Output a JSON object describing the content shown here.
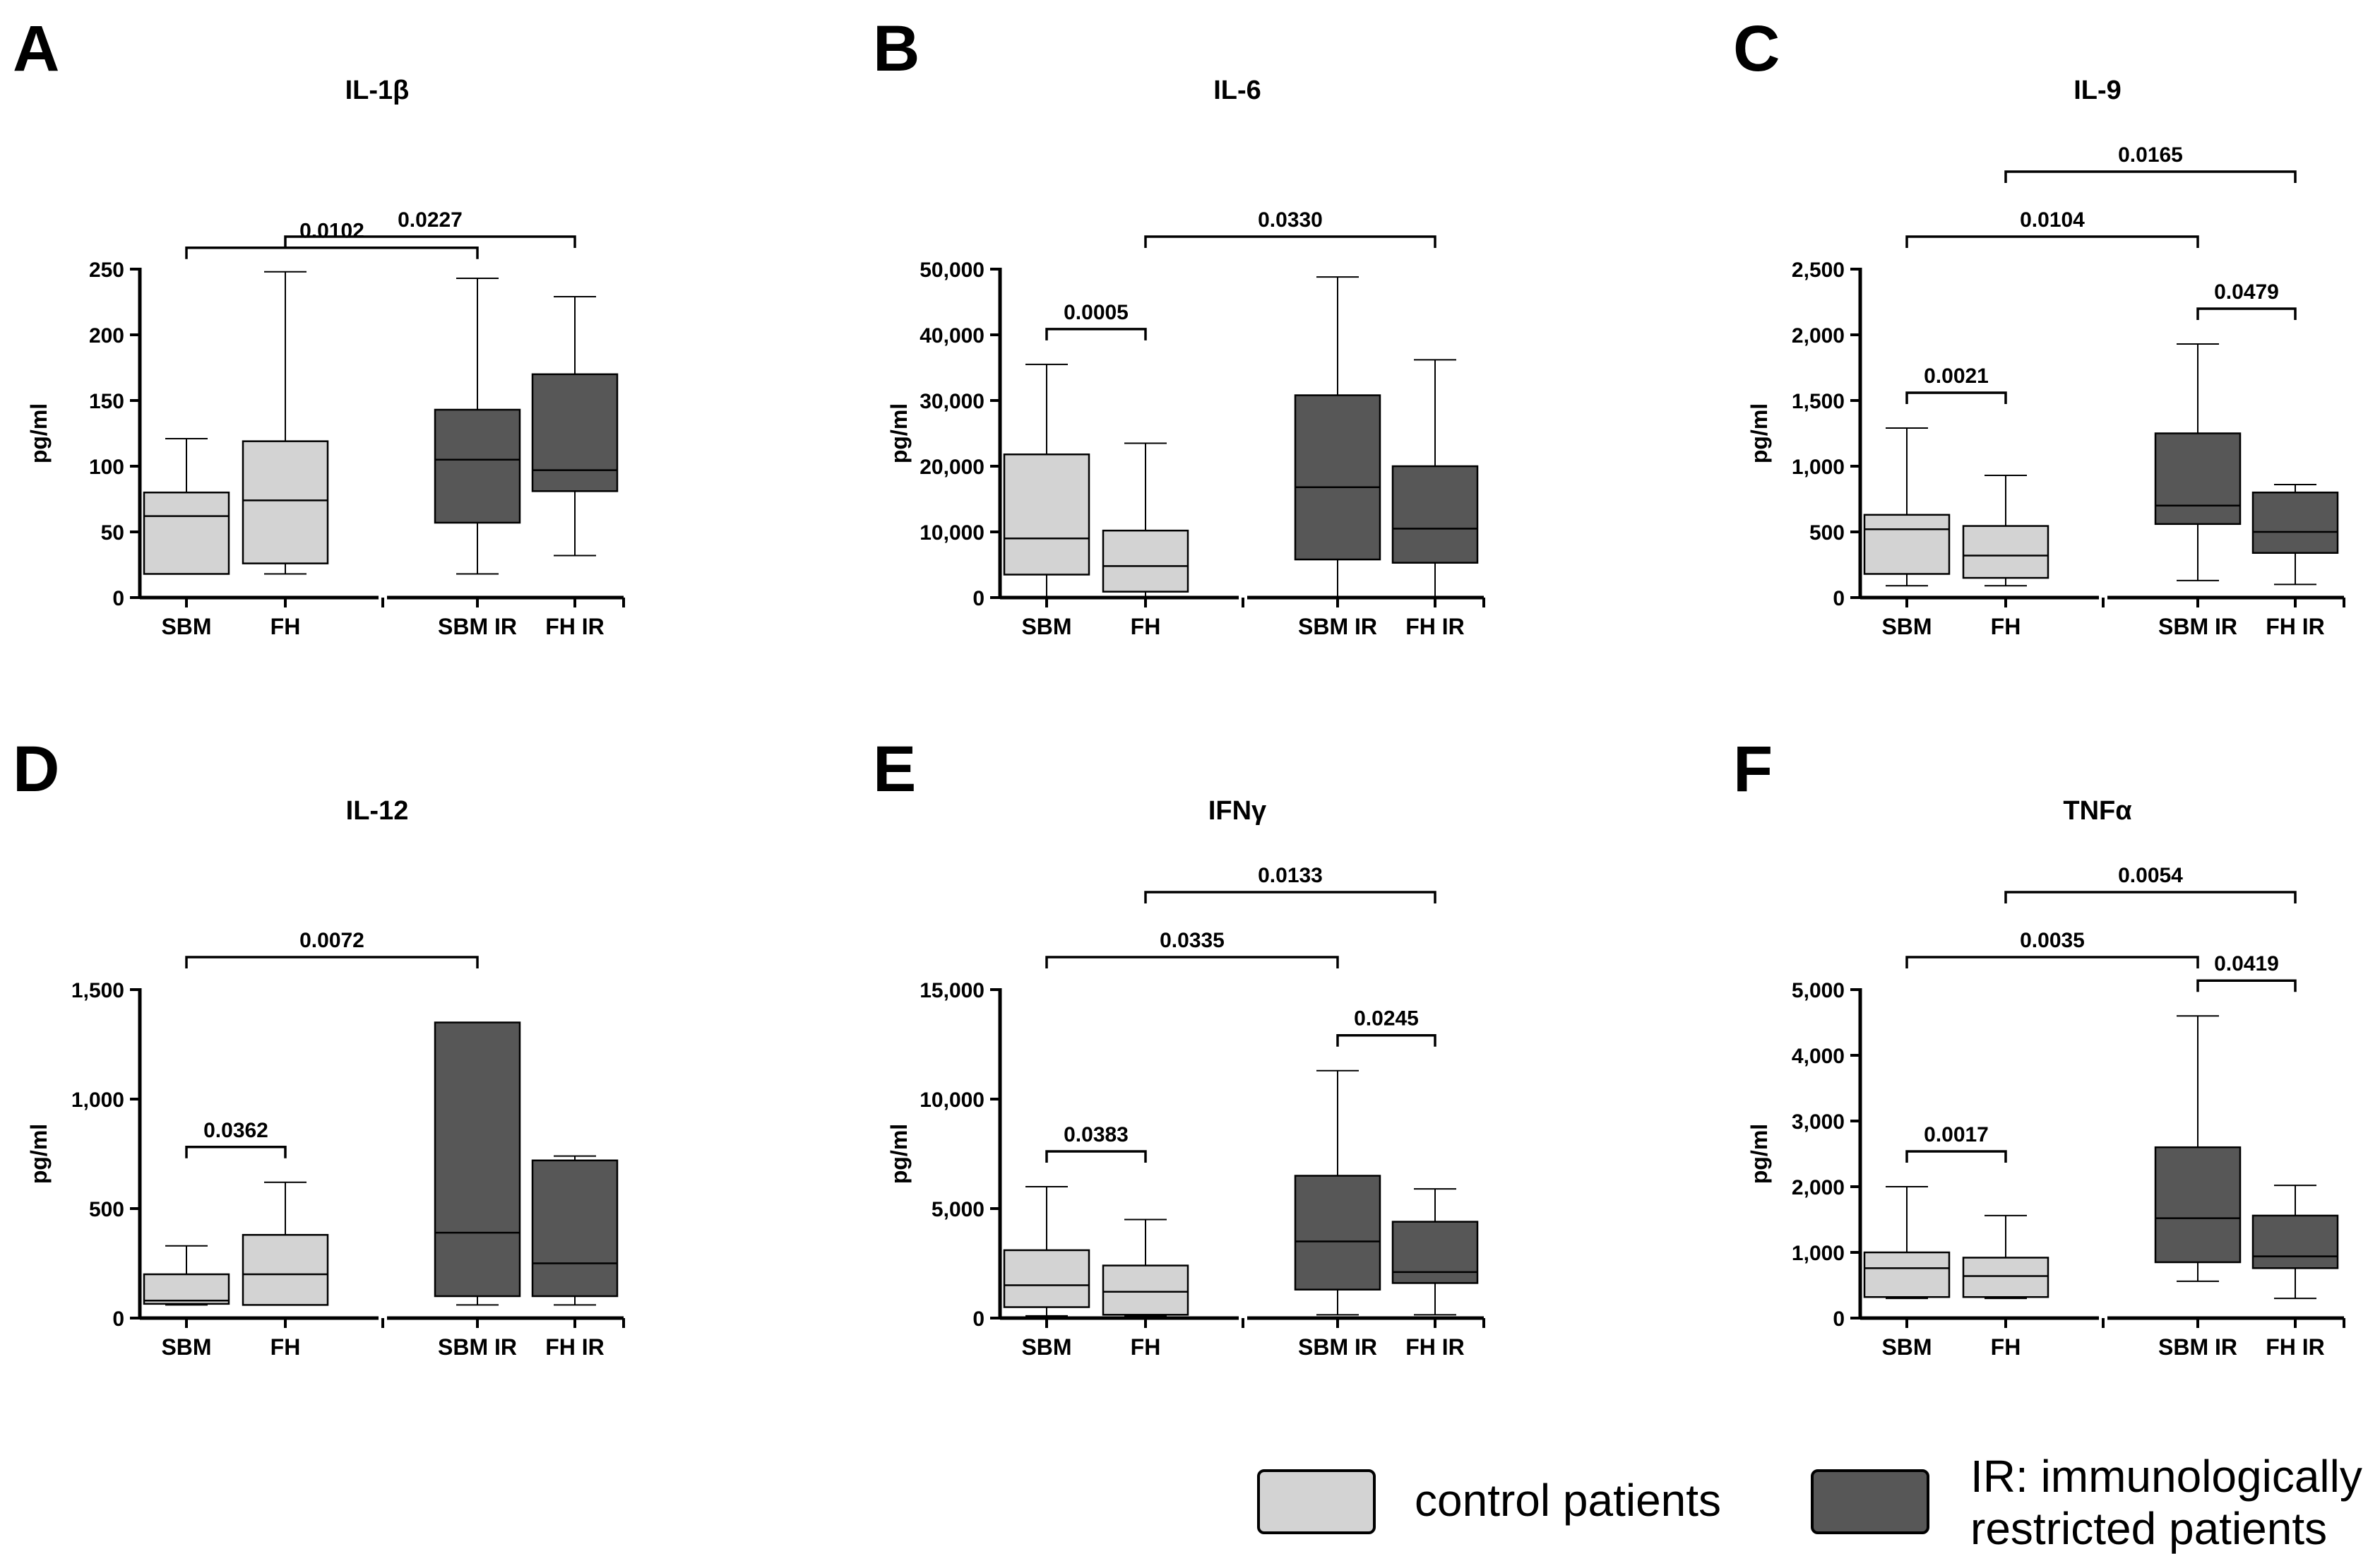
{
  "colors": {
    "control": "#d3d3d3",
    "restricted": "#575757",
    "line": "#000000"
  },
  "legend": {
    "control_label": "control patients",
    "restricted_label_line1": "IR: immunologically",
    "restricted_label_line2": "restricted patients"
  },
  "chart_data": [
    {
      "panel": "A",
      "title": "IL-1β",
      "type": "box",
      "ylabel": "pg/ml",
      "ylim": [
        0,
        250
      ],
      "yticks": [
        0,
        50,
        100,
        150,
        200,
        250
      ],
      "ytick_labels": [
        "0",
        "50",
        "100",
        "150",
        "200",
        "250"
      ],
      "categories": [
        "SBM",
        "FH",
        "SBM IR",
        "FH IR"
      ],
      "groups": [
        "control",
        "control",
        "restricted",
        "restricted"
      ],
      "boxes": [
        {
          "min": 18,
          "q1": 18,
          "median": 62,
          "q3": 80,
          "max": 121
        },
        {
          "min": 18,
          "q1": 26,
          "median": 74,
          "q3": 119,
          "max": 248
        },
        {
          "min": 18,
          "q1": 57,
          "median": 105,
          "q3": 143,
          "max": 243
        },
        {
          "min": 32,
          "q1": 81,
          "median": 97,
          "q3": 170,
          "max": 229
        }
      ],
      "brackets": [
        {
          "from": 0,
          "to": 2,
          "label": "0.0102",
          "level": 0
        },
        {
          "from": 1,
          "to": 3,
          "label": "0.0227",
          "level": 1
        }
      ]
    },
    {
      "panel": "B",
      "title": "IL-6",
      "type": "box",
      "ylabel": "pg/ml",
      "ylim": [
        0,
        50000
      ],
      "yticks": [
        0,
        10000,
        20000,
        30000,
        40000,
        50000
      ],
      "ytick_labels": [
        "0",
        "10,000",
        "20,000",
        "30,000",
        "40,000",
        "50,000"
      ],
      "categories": [
        "SBM",
        "FH",
        "SBM IR",
        "FH IR"
      ],
      "groups": [
        "control",
        "control",
        "restricted",
        "restricted"
      ],
      "boxes": [
        {
          "min": 0,
          "q1": 3500,
          "median": 9000,
          "q3": 21800,
          "max": 35500
        },
        {
          "min": 0,
          "q1": 900,
          "median": 4800,
          "q3": 10200,
          "max": 23500
        },
        {
          "min": 0,
          "q1": 5800,
          "median": 16800,
          "q3": 30800,
          "max": 48800
        },
        {
          "min": 0,
          "q1": 5300,
          "median": 10500,
          "q3": 20000,
          "max": 36200
        }
      ],
      "brackets": [
        {
          "from": 0,
          "to": 1,
          "label": "0.0005",
          "level": 0
        },
        {
          "from": 1,
          "to": 3,
          "label": "0.0330",
          "level": 1
        }
      ]
    },
    {
      "panel": "C",
      "title": "IL-9",
      "type": "box",
      "ylabel": "pg/ml",
      "ylim": [
        0,
        2500
      ],
      "yticks": [
        0,
        500,
        1000,
        1500,
        2000,
        2500
      ],
      "ytick_labels": [
        "0",
        "500",
        "1,000",
        "1,500",
        "2,000",
        "2,500"
      ],
      "categories": [
        "SBM",
        "FH",
        "SBM IR",
        "FH IR"
      ],
      "groups": [
        "control",
        "control",
        "restricted",
        "restricted"
      ],
      "boxes": [
        {
          "min": 90,
          "q1": 180,
          "median": 520,
          "q3": 630,
          "max": 1290
        },
        {
          "min": 90,
          "q1": 150,
          "median": 320,
          "q3": 545,
          "max": 930
        },
        {
          "min": 130,
          "q1": 560,
          "median": 700,
          "q3": 1250,
          "max": 1930
        },
        {
          "min": 100,
          "q1": 340,
          "median": 500,
          "q3": 800,
          "max": 860
        }
      ],
      "brackets": [
        {
          "from": 0,
          "to": 1,
          "label": "0.0021",
          "level": 0
        },
        {
          "from": 2,
          "to": 3,
          "label": "0.0479",
          "level": 0
        },
        {
          "from": 0,
          "to": 2,
          "label": "0.0104",
          "level": 1
        },
        {
          "from": 1,
          "to": 3,
          "label": "0.0165",
          "level": 2
        }
      ]
    },
    {
      "panel": "D",
      "title": "IL-12",
      "type": "box",
      "ylabel": "pg/ml",
      "ylim": [
        0,
        1500
      ],
      "yticks": [
        0,
        500,
        1000,
        1500
      ],
      "ytick_labels": [
        "0",
        "500",
        "1,000",
        "1,500"
      ],
      "categories": [
        "SBM",
        "FH",
        "SBM IR",
        "FH IR"
      ],
      "groups": [
        "control",
        "control",
        "restricted",
        "restricted"
      ],
      "boxes": [
        {
          "min": 60,
          "q1": 65,
          "median": 80,
          "q3": 200,
          "max": 330
        },
        {
          "min": 60,
          "q1": 60,
          "median": 200,
          "q3": 380,
          "max": 620
        },
        {
          "min": 60,
          "q1": 100,
          "median": 390,
          "q3": 1350,
          "max": 1350
        },
        {
          "min": 60,
          "q1": 100,
          "median": 250,
          "q3": 720,
          "max": 740
        }
      ],
      "brackets": [
        {
          "from": 0,
          "to": 1,
          "label": "0.0362",
          "level": 0
        },
        {
          "from": 0,
          "to": 2,
          "label": "0.0072",
          "level": 1
        }
      ]
    },
    {
      "panel": "E",
      "title": "IFNγ",
      "type": "box",
      "ylabel": "pg/ml",
      "ylim": [
        0,
        15000
      ],
      "yticks": [
        0,
        5000,
        10000,
        15000
      ],
      "ytick_labels": [
        "0",
        "5,000",
        "10,000",
        "15,000"
      ],
      "categories": [
        "SBM",
        "FH",
        "SBM IR",
        "FH IR"
      ],
      "groups": [
        "control",
        "control",
        "restricted",
        "restricted"
      ],
      "boxes": [
        {
          "min": 100,
          "q1": 500,
          "median": 1500,
          "q3": 3100,
          "max": 6000
        },
        {
          "min": 100,
          "q1": 150,
          "median": 1200,
          "q3": 2400,
          "max": 4500
        },
        {
          "min": 150,
          "q1": 1300,
          "median": 3500,
          "q3": 6500,
          "max": 11300
        },
        {
          "min": 150,
          "q1": 1600,
          "median": 2100,
          "q3": 4400,
          "max": 5900
        }
      ],
      "brackets": [
        {
          "from": 0,
          "to": 1,
          "label": "0.0383",
          "level": 0
        },
        {
          "from": 2,
          "to": 3,
          "label": "0.0245",
          "level": 0
        },
        {
          "from": 0,
          "to": 2,
          "label": "0.0335",
          "level": 1
        },
        {
          "from": 1,
          "to": 3,
          "label": "0.0133",
          "level": 2
        }
      ]
    },
    {
      "panel": "F",
      "title": "TNFα",
      "type": "box",
      "ylabel": "pg/ml",
      "ylim": [
        0,
        5000
      ],
      "yticks": [
        0,
        1000,
        2000,
        3000,
        4000,
        5000
      ],
      "ytick_labels": [
        "0",
        "1,000",
        "2,000",
        "3,000",
        "4,000",
        "5,000"
      ],
      "categories": [
        "SBM",
        "FH",
        "SBM IR",
        "FH IR"
      ],
      "groups": [
        "control",
        "control",
        "restricted",
        "restricted"
      ],
      "boxes": [
        {
          "min": 300,
          "q1": 320,
          "median": 760,
          "q3": 1000,
          "max": 2000
        },
        {
          "min": 300,
          "q1": 320,
          "median": 640,
          "q3": 920,
          "max": 1560
        },
        {
          "min": 560,
          "q1": 850,
          "median": 1520,
          "q3": 2600,
          "max": 4600
        },
        {
          "min": 300,
          "q1": 760,
          "median": 940,
          "q3": 1560,
          "max": 2020
        }
      ],
      "brackets": [
        {
          "from": 0,
          "to": 1,
          "label": "0.0017",
          "level": 0
        },
        {
          "from": 2,
          "to": 3,
          "label": "0.0419",
          "level": 0
        },
        {
          "from": 0,
          "to": 2,
          "label": "0.0035",
          "level": 1
        },
        {
          "from": 1,
          "to": 3,
          "label": "0.0054",
          "level": 2
        }
      ]
    }
  ]
}
